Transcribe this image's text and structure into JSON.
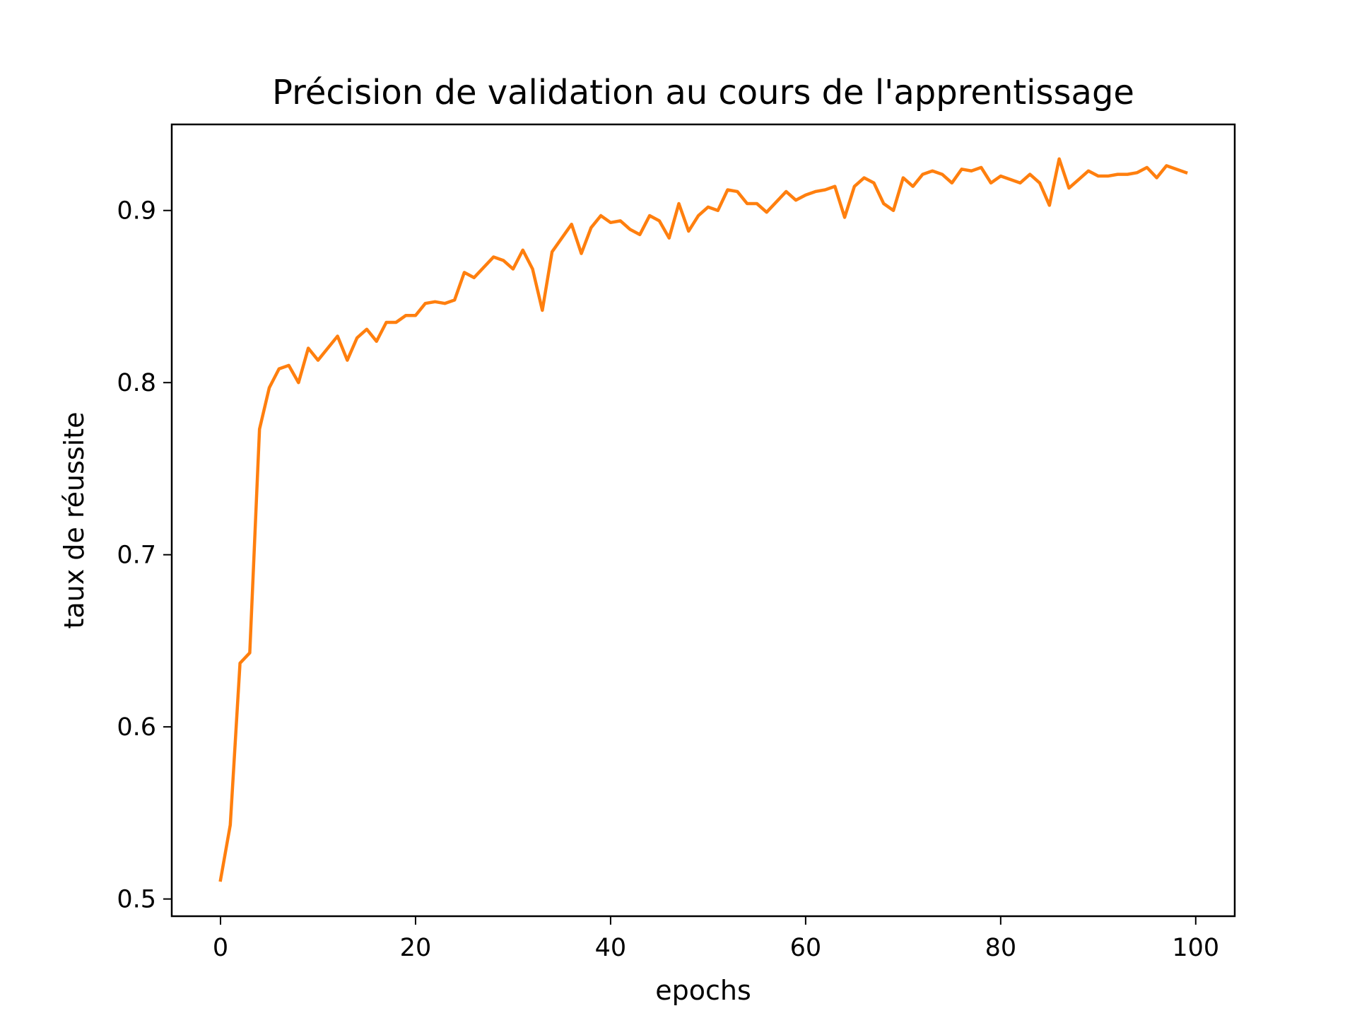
{
  "chart_data": {
    "type": "line",
    "title": "Précision de validation au cours de l'apprentissage",
    "xlabel": "epochs",
    "ylabel": "taux de réussite",
    "xlim": [
      -5,
      104
    ],
    "ylim": [
      0.49,
      0.95
    ],
    "x_ticks": [
      0,
      20,
      40,
      60,
      80,
      100
    ],
    "y_ticks": [
      0.5,
      0.6,
      0.7,
      0.8,
      0.9
    ],
    "x_tick_labels": [
      "0",
      "20",
      "40",
      "60",
      "80",
      "100"
    ],
    "y_tick_labels": [
      "0.5",
      "0.6",
      "0.7",
      "0.8",
      "0.9"
    ],
    "grid": false,
    "series": [
      {
        "color": "#ff7f0e",
        "x": [
          0,
          1,
          2,
          3,
          4,
          5,
          6,
          7,
          8,
          9,
          10,
          11,
          12,
          13,
          14,
          15,
          16,
          17,
          18,
          19,
          20,
          21,
          22,
          23,
          24,
          25,
          26,
          27,
          28,
          29,
          30,
          31,
          32,
          33,
          34,
          35,
          36,
          37,
          38,
          39,
          40,
          41,
          42,
          43,
          44,
          45,
          46,
          47,
          48,
          49,
          50,
          51,
          52,
          53,
          54,
          55,
          56,
          57,
          58,
          59,
          60,
          61,
          62,
          63,
          64,
          65,
          66,
          67,
          68,
          69,
          70,
          71,
          72,
          73,
          74,
          75,
          76,
          77,
          78,
          79,
          80,
          81,
          82,
          83,
          84,
          85,
          86,
          87,
          88,
          89,
          90,
          91,
          92,
          93,
          94,
          95,
          96,
          97,
          98,
          99
        ],
        "y": [
          0.511,
          0.543,
          0.637,
          0.643,
          0.773,
          0.797,
          0.808,
          0.81,
          0.8,
          0.82,
          0.813,
          0.82,
          0.827,
          0.813,
          0.826,
          0.831,
          0.824,
          0.835,
          0.835,
          0.839,
          0.839,
          0.846,
          0.847,
          0.846,
          0.848,
          0.864,
          0.861,
          0.867,
          0.873,
          0.871,
          0.866,
          0.877,
          0.866,
          0.842,
          0.876,
          0.884,
          0.892,
          0.875,
          0.89,
          0.897,
          0.893,
          0.894,
          0.889,
          0.886,
          0.897,
          0.894,
          0.884,
          0.904,
          0.888,
          0.897,
          0.902,
          0.9,
          0.912,
          0.911,
          0.904,
          0.904,
          0.899,
          0.905,
          0.911,
          0.906,
          0.909,
          0.911,
          0.912,
          0.914,
          0.896,
          0.914,
          0.919,
          0.916,
          0.904,
          0.9,
          0.919,
          0.914,
          0.921,
          0.923,
          0.921,
          0.916,
          0.924,
          0.923,
          0.925,
          0.916,
          0.92,
          0.918,
          0.916,
          0.921,
          0.916,
          0.903,
          0.93,
          0.913,
          0.918,
          0.923,
          0.92,
          0.92,
          0.921,
          0.921,
          0.922,
          0.925,
          0.919,
          0.926,
          0.924,
          0.922
        ]
      }
    ]
  }
}
